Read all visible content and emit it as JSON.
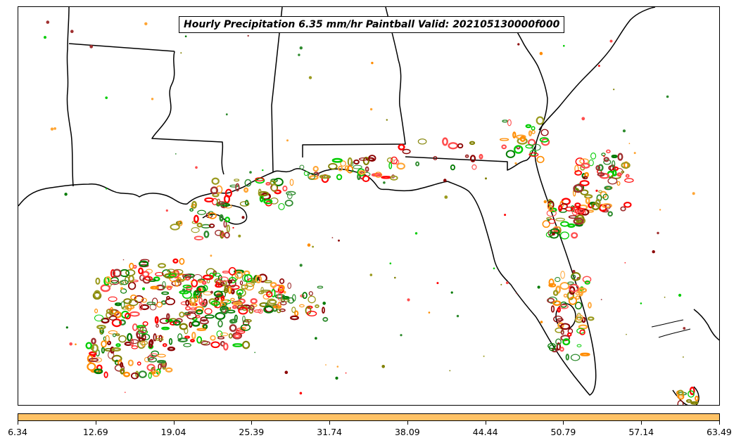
{
  "title": "Hourly Precipitation 6.35 mm/hr Paintball Valid: 202105130000f000",
  "colorbar": {
    "color": "#ffc266",
    "ticks": [
      "6.34",
      "12.69",
      "19.04",
      "25.39",
      "31.74",
      "38.09",
      "44.44",
      "50.79",
      "57.14",
      "63.49"
    ]
  },
  "map": {
    "region": "US Gulf Coast and Florida",
    "land_color": "#ffffff",
    "border_color": "#000000",
    "paintball_colors": [
      "#ff8c00",
      "#ffa533",
      "#ff0000",
      "#ff4d4d",
      "#8b0000",
      "#a03030",
      "#00cc00",
      "#007a00",
      "#808000",
      "#9a9a1e",
      "#2e8b2e"
    ]
  }
}
